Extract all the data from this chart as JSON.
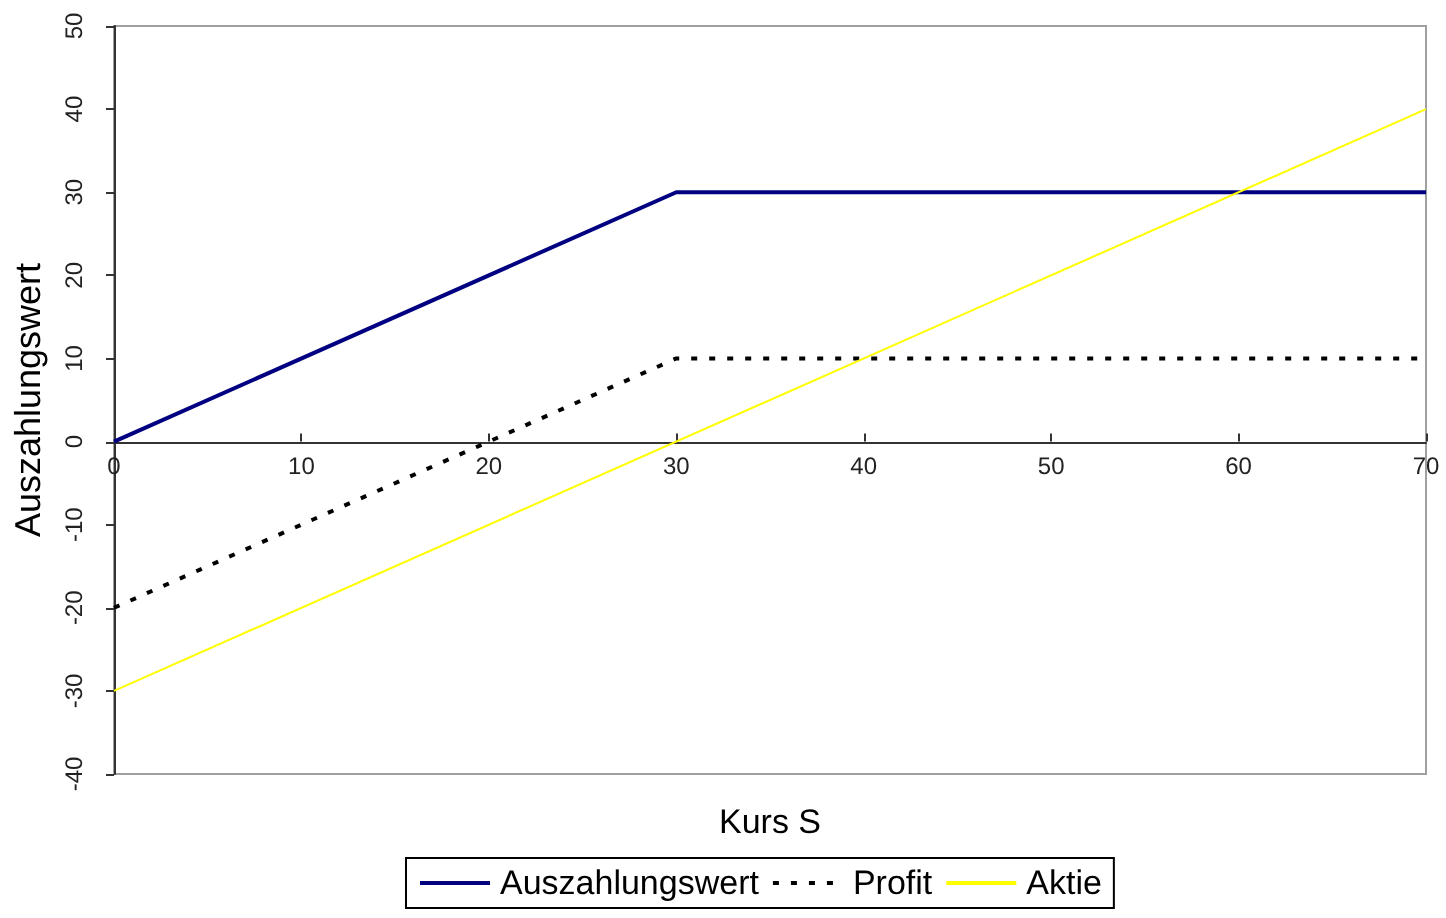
{
  "chart_data": {
    "type": "line",
    "xlabel": "Kurs S",
    "ylabel": "Auszahlungswert",
    "xlim": [
      0,
      70
    ],
    "xticks": [
      0,
      10,
      20,
      30,
      40,
      50,
      60,
      70
    ],
    "ylim": [
      -40,
      50
    ],
    "yticks": [
      -40,
      -30,
      -20,
      -10,
      0,
      10,
      20,
      30,
      40,
      50
    ],
    "grid": false,
    "legend": "bottom",
    "marker": "none",
    "series": [
      {
        "name": "Auszahlungswert",
        "color": "#000080",
        "x": [
          0,
          30,
          70
        ],
        "values": [
          0,
          30,
          30
        ],
        "line_style": "solid"
      },
      {
        "name": "Profit",
        "color": "#000000",
        "x": [
          0,
          30,
          70
        ],
        "values": [
          -20,
          10,
          10
        ],
        "line_style": "dotted"
      },
      {
        "name": "Aktie",
        "color": "#ffff00",
        "x": [
          0,
          70
        ],
        "values": [
          -30,
          40
        ],
        "line_style": "solid"
      }
    ]
  }
}
